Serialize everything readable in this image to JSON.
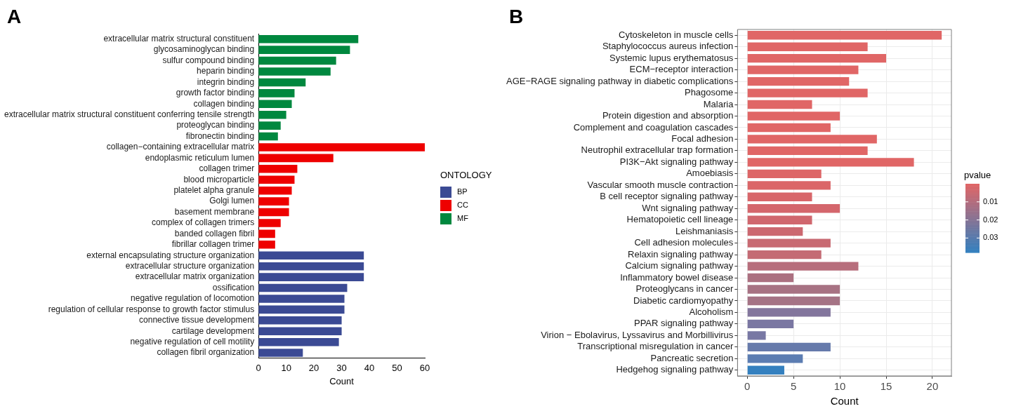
{
  "chart_data": [
    {
      "type": "bar",
      "title": "A",
      "orientation": "horizontal",
      "stacked": true,
      "xlabel": "Count",
      "legend_title": "ONTOLOGY",
      "legend": "right",
      "xlim": [
        0,
        60
      ],
      "xticks": [
        0,
        10,
        20,
        30,
        40,
        50,
        60
      ],
      "categories": [
        "extracellular matrix structural constituent",
        "glycosaminoglycan binding",
        "sulfur compound binding",
        "heparin binding",
        "integrin binding",
        "growth factor binding",
        "collagen binding",
        "extracellular matrix structural constituent conferring tensile strength",
        "proteoglycan binding",
        "fibronectin binding",
        "collagen−containing extracellular matrix",
        "endoplasmic reticulum lumen",
        "collagen trimer",
        "blood microparticle",
        "platelet alpha granule",
        "Golgi lumen",
        "basement membrane",
        "complex of collagen trimers",
        "banded collagen fibril",
        "fibrillar collagen trimer",
        "external encapsulating structure organization",
        "extracellular structure organization",
        "extracellular matrix organization",
        "ossification",
        "negative regulation of locomotion",
        "regulation of cellular response to growth factor stimulus",
        "connective tissue development",
        "cartilage development",
        "negative regulation of cell motility",
        "collagen fibril organization"
      ],
      "series": [
        {
          "name": "BP",
          "color": "#3b4a94",
          "values": [
            null,
            null,
            null,
            null,
            null,
            null,
            null,
            null,
            null,
            null,
            null,
            null,
            null,
            null,
            null,
            null,
            null,
            null,
            null,
            null,
            38,
            38,
            38,
            32,
            31,
            31,
            30,
            30,
            29,
            16
          ]
        },
        {
          "name": "CC",
          "color": "#ee0000",
          "values": [
            null,
            null,
            null,
            null,
            null,
            null,
            null,
            null,
            null,
            null,
            60,
            27,
            14,
            13,
            12,
            11,
            11,
            8,
            6,
            6,
            null,
            null,
            null,
            null,
            null,
            null,
            null,
            null,
            null,
            null
          ]
        },
        {
          "name": "MF",
          "color": "#00883f",
          "values": [
            36,
            33,
            28,
            26,
            17,
            13,
            12,
            10,
            8,
            7,
            null,
            null,
            null,
            null,
            null,
            null,
            null,
            null,
            null,
            null,
            null,
            null,
            null,
            null,
            null,
            null,
            null,
            null,
            null,
            null
          ]
        }
      ]
    },
    {
      "type": "bar",
      "title": "B",
      "orientation": "horizontal",
      "xlabel": "Count",
      "clabel": "pvalue",
      "clim": [
        0,
        0.038
      ],
      "cticks": [
        0.01,
        0.02,
        0.03
      ],
      "grid": true,
      "xlim": [
        -1.05,
        22.05
      ],
      "xticks": [
        0,
        5,
        10,
        15,
        20
      ],
      "categories": [
        "Cytoskeleton in muscle cells",
        "Staphylococcus aureus infection",
        "Systemic lupus erythematosus",
        "ECM−receptor interaction",
        "AGE−RAGE signaling pathway in diabetic complications",
        "Phagosome",
        "Malaria",
        "Protein digestion and absorption",
        "Complement and coagulation cascades",
        "Focal adhesion",
        "Neutrophil extracellular trap formation",
        "PI3K−Akt signaling pathway",
        "Amoebiasis",
        "Vascular smooth muscle contraction",
        "B cell receptor signaling pathway",
        "Wnt signaling pathway",
        "Hematopoietic cell lineage",
        "Leishmaniasis",
        "Cell adhesion molecules",
        "Relaxin signaling pathway",
        "Calcium signaling pathway",
        "Inflammatory bowel disease",
        "Proteoglycans in cancer",
        "Diabetic cardiomyopathy",
        "Alcoholism",
        "PPAR signaling pathway",
        "Virion − Ebolavirus, Lyssavirus and Morbillivirus",
        "Transcriptional misregulation in cancer",
        "Pancreatic secretion",
        "Hedgehog signaling pathway"
      ],
      "values": [
        21,
        13,
        15,
        12,
        11,
        13,
        7,
        10,
        9,
        14,
        13,
        18,
        8,
        9,
        7,
        10,
        7,
        6,
        9,
        8,
        12,
        5,
        10,
        10,
        9,
        5,
        2,
        9,
        6,
        4
      ],
      "colors": [
        "#e06666",
        "#e06666",
        "#e06666",
        "#e06666",
        "#e06666",
        "#e06666",
        "#e06666",
        "#e06666",
        "#e06666",
        "#e06666",
        "#e06666",
        "#e06666",
        "#dd6667",
        "#db6668",
        "#d8666a",
        "#d4666c",
        "#d0676e",
        "#cc6870",
        "#c86a72",
        "#c46b74",
        "#b76e7c",
        "#ab7080",
        "#a77283",
        "#a57385",
        "#83769d",
        "#7a77a2",
        "#7878a4",
        "#667aab",
        "#5c7db2",
        "#3480bf"
      ]
    }
  ]
}
